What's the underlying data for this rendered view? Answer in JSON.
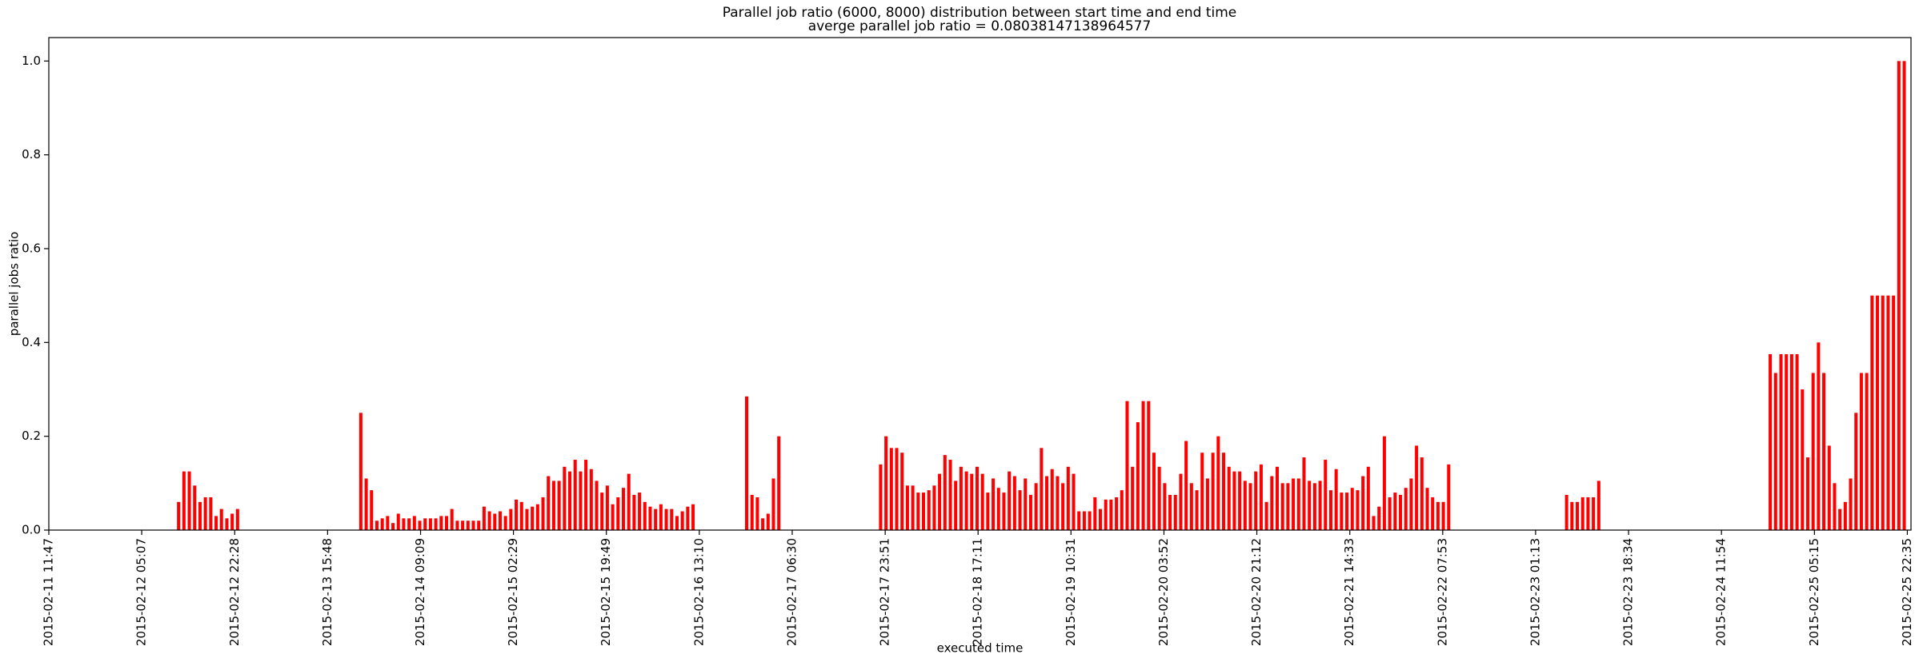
{
  "chart_data": {
    "type": "bar",
    "title": "Parallel job ratio (6000, 8000) distribution between start time and end time",
    "subtitle": "averge parallel job ratio = 0.08038147138964577",
    "x_label": "executed time",
    "y_label": "parallel jobs ratio",
    "color": "#ff0000",
    "xlim": [
      "2015-02-11 11:47",
      "2015-02-25 23:16"
    ],
    "xticks": [
      "2015-02-11 11:47",
      "2015-02-12 05:07",
      "2015-02-12 22:28",
      "2015-02-13 15:48",
      "2015-02-14 09:09",
      "2015-02-15 02:29",
      "2015-02-15 19:49",
      "2015-02-16 13:10",
      "2015-02-17 06:30",
      "2015-02-17 23:51",
      "2015-02-18 17:11",
      "2015-02-19 10:31",
      "2015-02-20 03:52",
      "2015-02-20 21:12",
      "2015-02-21 14:33",
      "2015-02-22 07:53",
      "2015-02-23 01:13",
      "2015-02-23 18:34",
      "2015-02-24 11:54",
      "2015-02-25 05:15",
      "2015-02-25 22:35"
    ],
    "ylim": [
      0,
      1.05
    ],
    "yticks": [
      {
        "value": 0,
        "label": "0.0"
      },
      0.2,
      0.4,
      0.6,
      0.8,
      {
        "value": 1,
        "label": "1.0"
      }
    ],
    "x": [
      "2015-02-12 12:00",
      "2015-02-12 13:00",
      "2015-02-12 14:00",
      "2015-02-12 15:00",
      "2015-02-12 16:00",
      "2015-02-12 17:00",
      "2015-02-12 18:00",
      "2015-02-12 19:00",
      "2015-02-12 20:00",
      "2015-02-12 21:00",
      "2015-02-12 22:00",
      "2015-02-12 23:00",
      "2015-02-13 22:00",
      "2015-02-13 23:00",
      "2015-02-14 00:00",
      "2015-02-14 01:00",
      "2015-02-14 02:00",
      "2015-02-14 03:00",
      "2015-02-14 04:00",
      "2015-02-14 05:00",
      "2015-02-14 06:00",
      "2015-02-14 07:00",
      "2015-02-14 08:00",
      "2015-02-14 09:00",
      "2015-02-14 10:00",
      "2015-02-14 11:00",
      "2015-02-14 12:00",
      "2015-02-14 13:00",
      "2015-02-14 14:00",
      "2015-02-14 15:00",
      "2015-02-14 16:00",
      "2015-02-14 17:00",
      "2015-02-14 18:00",
      "2015-02-14 19:00",
      "2015-02-14 20:00",
      "2015-02-14 21:00",
      "2015-02-14 22:00",
      "2015-02-14 23:00",
      "2015-02-15 00:00",
      "2015-02-15 01:00",
      "2015-02-15 02:00",
      "2015-02-15 03:00",
      "2015-02-15 04:00",
      "2015-02-15 05:00",
      "2015-02-15 06:00",
      "2015-02-15 07:00",
      "2015-02-15 08:00",
      "2015-02-15 09:00",
      "2015-02-15 10:00",
      "2015-02-15 11:00",
      "2015-02-15 12:00",
      "2015-02-15 13:00",
      "2015-02-15 14:00",
      "2015-02-15 15:00",
      "2015-02-15 16:00",
      "2015-02-15 17:00",
      "2015-02-15 18:00",
      "2015-02-15 19:00",
      "2015-02-15 20:00",
      "2015-02-15 21:00",
      "2015-02-15 22:00",
      "2015-02-15 23:00",
      "2015-02-16 00:00",
      "2015-02-16 01:00",
      "2015-02-16 02:00",
      "2015-02-16 03:00",
      "2015-02-16 04:00",
      "2015-02-16 05:00",
      "2015-02-16 06:00",
      "2015-02-16 07:00",
      "2015-02-16 08:00",
      "2015-02-16 09:00",
      "2015-02-16 10:00",
      "2015-02-16 11:00",
      "2015-02-16 12:00",
      "2015-02-16 22:00",
      "2015-02-16 23:00",
      "2015-02-17 00:00",
      "2015-02-17 01:00",
      "2015-02-17 02:00",
      "2015-02-17 03:00",
      "2015-02-17 04:00",
      "2015-02-17 23:00",
      "2015-02-18 00:00",
      "2015-02-18 01:00",
      "2015-02-18 02:00",
      "2015-02-18 03:00",
      "2015-02-18 04:00",
      "2015-02-18 05:00",
      "2015-02-18 06:00",
      "2015-02-18 07:00",
      "2015-02-18 08:00",
      "2015-02-18 09:00",
      "2015-02-18 10:00",
      "2015-02-18 11:00",
      "2015-02-18 12:00",
      "2015-02-18 13:00",
      "2015-02-18 14:00",
      "2015-02-18 15:00",
      "2015-02-18 16:00",
      "2015-02-18 17:00",
      "2015-02-18 18:00",
      "2015-02-18 19:00",
      "2015-02-18 20:00",
      "2015-02-18 21:00",
      "2015-02-18 22:00",
      "2015-02-18 23:00",
      "2015-02-19 00:00",
      "2015-02-19 01:00",
      "2015-02-19 02:00",
      "2015-02-19 03:00",
      "2015-02-19 04:00",
      "2015-02-19 05:00",
      "2015-02-19 06:00",
      "2015-02-19 07:00",
      "2015-02-19 08:00",
      "2015-02-19 09:00",
      "2015-02-19 10:00",
      "2015-02-19 11:00",
      "2015-02-19 12:00",
      "2015-02-19 13:00",
      "2015-02-19 14:00",
      "2015-02-19 15:00",
      "2015-02-19 16:00",
      "2015-02-19 17:00",
      "2015-02-19 18:00",
      "2015-02-19 19:00",
      "2015-02-19 20:00",
      "2015-02-19 21:00",
      "2015-02-19 22:00",
      "2015-02-19 23:00",
      "2015-02-20 00:00",
      "2015-02-20 01:00",
      "2015-02-20 02:00",
      "2015-02-20 03:00",
      "2015-02-20 04:00",
      "2015-02-20 05:00",
      "2015-02-20 06:00",
      "2015-02-20 07:00",
      "2015-02-20 08:00",
      "2015-02-20 09:00",
      "2015-02-20 10:00",
      "2015-02-20 11:00",
      "2015-02-20 12:00",
      "2015-02-20 13:00",
      "2015-02-20 14:00",
      "2015-02-20 15:00",
      "2015-02-20 16:00",
      "2015-02-20 17:00",
      "2015-02-20 18:00",
      "2015-02-20 19:00",
      "2015-02-20 20:00",
      "2015-02-20 21:00",
      "2015-02-20 22:00",
      "2015-02-20 23:00",
      "2015-02-21 00:00",
      "2015-02-21 01:00",
      "2015-02-21 02:00",
      "2015-02-21 03:00",
      "2015-02-21 04:00",
      "2015-02-21 05:00",
      "2015-02-21 06:00",
      "2015-02-21 07:00",
      "2015-02-21 08:00",
      "2015-02-21 09:00",
      "2015-02-21 10:00",
      "2015-02-21 11:00",
      "2015-02-21 12:00",
      "2015-02-21 13:00",
      "2015-02-21 14:00",
      "2015-02-21 15:00",
      "2015-02-21 16:00",
      "2015-02-21 17:00",
      "2015-02-21 18:00",
      "2015-02-21 19:00",
      "2015-02-21 20:00",
      "2015-02-21 21:00",
      "2015-02-21 22:00",
      "2015-02-21 23:00",
      "2015-02-22 00:00",
      "2015-02-22 01:00",
      "2015-02-22 02:00",
      "2015-02-22 03:00",
      "2015-02-22 04:00",
      "2015-02-22 05:00",
      "2015-02-22 06:00",
      "2015-02-22 07:00",
      "2015-02-22 08:00",
      "2015-02-22 09:00",
      "2015-02-23 07:00",
      "2015-02-23 08:00",
      "2015-02-23 09:00",
      "2015-02-23 10:00",
      "2015-02-23 11:00",
      "2015-02-23 12:00",
      "2015-02-23 13:00",
      "2015-02-24 21:00",
      "2015-02-24 22:00",
      "2015-02-24 23:00",
      "2015-02-25 00:00",
      "2015-02-25 01:00",
      "2015-02-25 02:00",
      "2015-02-25 03:00",
      "2015-02-25 04:00",
      "2015-02-25 05:00",
      "2015-02-25 06:00",
      "2015-02-25 07:00",
      "2015-02-25 08:00",
      "2015-02-25 09:00",
      "2015-02-25 10:00",
      "2015-02-25 11:00",
      "2015-02-25 12:00",
      "2015-02-25 13:00",
      "2015-02-25 14:00",
      "2015-02-25 15:00",
      "2015-02-25 16:00",
      "2015-02-25 17:00",
      "2015-02-25 18:00",
      "2015-02-25 19:00",
      "2015-02-25 20:00",
      "2015-02-25 21:00",
      "2015-02-25 22:00"
    ],
    "values": [
      0.06,
      0.125,
      0.125,
      0.095,
      0.06,
      0.07,
      0.07,
      0.03,
      0.045,
      0.025,
      0.035,
      0.045,
      0.25,
      0.11,
      0.085,
      0.02,
      0.025,
      0.03,
      0.015,
      0.035,
      0.025,
      0.025,
      0.03,
      0.02,
      0.025,
      0.025,
      0.025,
      0.03,
      0.03,
      0.045,
      0.02,
      0.02,
      0.02,
      0.02,
      0.02,
      0.05,
      0.04,
      0.035,
      0.04,
      0.03,
      0.045,
      0.065,
      0.06,
      0.045,
      0.05,
      0.055,
      0.07,
      0.115,
      0.105,
      0.105,
      0.135,
      0.125,
      0.15,
      0.125,
      0.15,
      0.13,
      0.105,
      0.08,
      0.095,
      0.055,
      0.07,
      0.09,
      0.12,
      0.075,
      0.08,
      0.06,
      0.05,
      0.045,
      0.055,
      0.045,
      0.045,
      0.03,
      0.04,
      0.05,
      0.055,
      0.285,
      0.075,
      0.07,
      0.025,
      0.035,
      0.11,
      0.2,
      0.14,
      0.2,
      0.175,
      0.175,
      0.165,
      0.095,
      0.095,
      0.08,
      0.08,
      0.085,
      0.095,
      0.12,
      0.16,
      0.15,
      0.105,
      0.135,
      0.125,
      0.12,
      0.135,
      0.12,
      0.08,
      0.11,
      0.09,
      0.08,
      0.125,
      0.115,
      0.085,
      0.11,
      0.075,
      0.1,
      0.175,
      0.115,
      0.13,
      0.115,
      0.1,
      0.135,
      0.12,
      0.04,
      0.04,
      0.04,
      0.07,
      0.045,
      0.065,
      0.065,
      0.07,
      0.085,
      0.275,
      0.135,
      0.23,
      0.275,
      0.275,
      0.165,
      0.135,
      0.1,
      0.075,
      0.075,
      0.12,
      0.19,
      0.1,
      0.085,
      0.165,
      0.11,
      0.165,
      0.2,
      0.165,
      0.135,
      0.125,
      0.125,
      0.105,
      0.1,
      0.125,
      0.14,
      0.06,
      0.115,
      0.135,
      0.1,
      0.1,
      0.11,
      0.11,
      0.155,
      0.105,
      0.1,
      0.105,
      0.15,
      0.085,
      0.13,
      0.08,
      0.08,
      0.09,
      0.085,
      0.115,
      0.135,
      0.03,
      0.05,
      0.2,
      0.07,
      0.08,
      0.075,
      0.09,
      0.11,
      0.18,
      0.155,
      0.09,
      0.07,
      0.06,
      0.06,
      0.14,
      0.075,
      0.06,
      0.06,
      0.07,
      0.07,
      0.07,
      0.105,
      0.375,
      0.335,
      0.375,
      0.375,
      0.375,
      0.375,
      0.3,
      0.155,
      0.335,
      0.4,
      0.335,
      0.18,
      0.1,
      0.045,
      0.06,
      0.11,
      0.25,
      0.335,
      0.335,
      0.5,
      0.5,
      0.5,
      0.5,
      0.5,
      1.0,
      1.0
    ]
  }
}
